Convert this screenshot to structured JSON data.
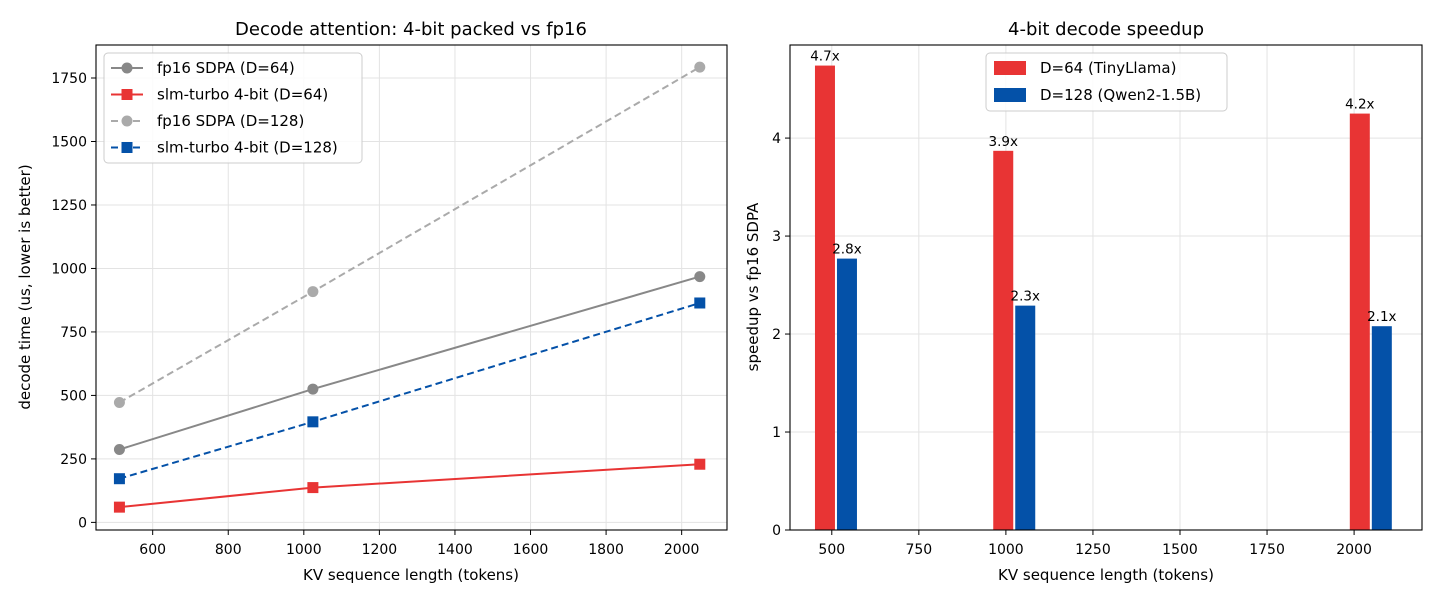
{
  "chart_data": [
    {
      "type": "line",
      "title": "Decode attention: 4-bit packed vs fp16",
      "xlabel": "KV sequence length (tokens)",
      "ylabel": "decode time (us, lower is better)",
      "xlim": [
        450,
        2120
      ],
      "ylim": [
        -30,
        1880
      ],
      "xticks": [
        600,
        800,
        1000,
        1200,
        1400,
        1600,
        1800,
        2000
      ],
      "yticks": [
        0,
        250,
        500,
        750,
        1000,
        1250,
        1500,
        1750
      ],
      "grid": true,
      "legend_position": "top-left",
      "x": [
        512,
        1024,
        2048
      ],
      "series": [
        {
          "name": "fp16 SDPA (D=64)",
          "values": [
            287,
            525,
            968
          ],
          "color": "#888888",
          "marker": "circle",
          "dashed": false
        },
        {
          "name": "slm-turbo 4-bit (D=64)",
          "values": [
            60,
            137,
            229
          ],
          "color": "#e83434",
          "marker": "square",
          "dashed": false
        },
        {
          "name": "fp16 SDPA (D=128)",
          "values": [
            472,
            909,
            1793
          ],
          "color": "#aaaaaa",
          "marker": "circle",
          "dashed": true
        },
        {
          "name": "slm-turbo 4-bit (D=128)",
          "values": [
            172,
            396,
            864
          ],
          "color": "#0451a8",
          "marker": "square",
          "dashed": true
        }
      ]
    },
    {
      "type": "bar",
      "title": "4-bit decode speedup",
      "xlabel": "KV sequence length (tokens)",
      "ylabel": "speedup vs fp16 SDPA",
      "xlim": [
        380,
        2195
      ],
      "ylim": [
        0,
        4.95
      ],
      "xticks": [
        500,
        750,
        1000,
        1250,
        1500,
        1750,
        2000
      ],
      "yticks": [
        0,
        1,
        2,
        3,
        4
      ],
      "grid": true,
      "legend_position": "top-center",
      "x": [
        512,
        1024,
        2048
      ],
      "series": [
        {
          "name": "D=64 (TinyLlama)",
          "values": [
            4.74,
            3.87,
            4.25
          ],
          "labels": [
            "4.7x",
            "3.9x",
            "4.2x"
          ],
          "color": "#e83434"
        },
        {
          "name": "D=128 (Qwen2-1.5B)",
          "values": [
            2.77,
            2.29,
            2.08
          ],
          "labels": [
            "2.8x",
            "2.3x",
            "2.1x"
          ],
          "color": "#0451a8"
        }
      ]
    }
  ]
}
